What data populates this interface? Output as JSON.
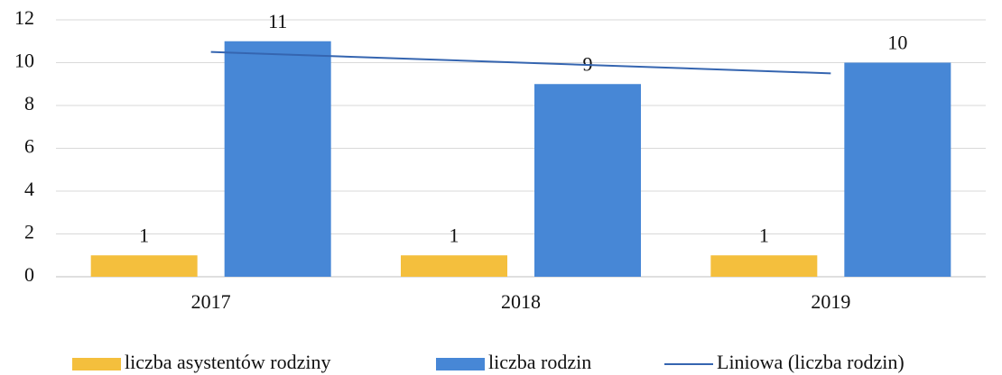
{
  "chart_data": {
    "type": "bar",
    "categories": [
      "2017",
      "2018",
      "2019"
    ],
    "series": [
      {
        "name": "liczba asystentów rodziny",
        "color": "#f4bf3d",
        "values": [
          1,
          1,
          1
        ],
        "data_labels": true
      },
      {
        "name": "liczba rodzin",
        "color": "#4787d6",
        "values": [
          11,
          9,
          10
        ],
        "data_labels": true
      },
      {
        "name": "Liniowa (liczba rodzin)",
        "color": "#3565b0",
        "type": "line",
        "values": [
          10.5,
          10,
          9.5
        ]
      }
    ],
    "ylim": [
      0,
      12
    ],
    "yticks": [
      0,
      2,
      4,
      6,
      8,
      10,
      12
    ],
    "grid": true,
    "legend": "bottom"
  }
}
